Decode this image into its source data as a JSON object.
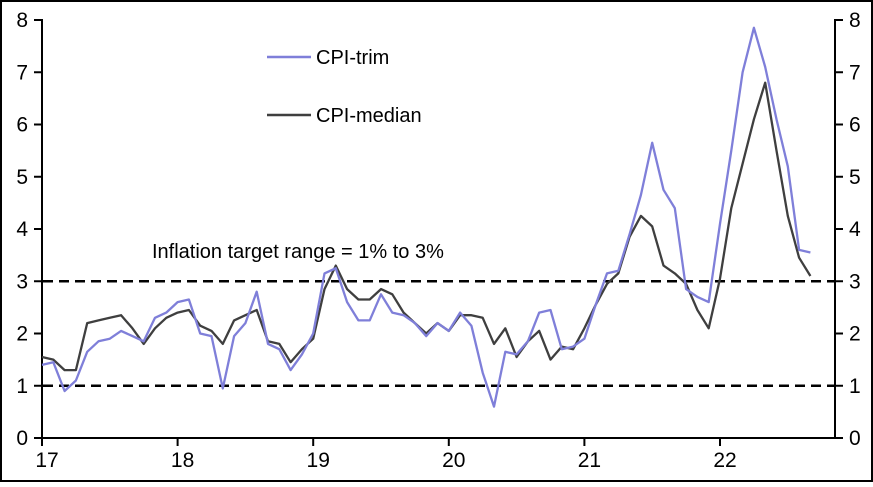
{
  "background": "#ffffff",
  "frame_color": "#000000",
  "chart_data": {
    "type": "line",
    "title": "",
    "x_start": "2017-01",
    "x_frequency": "monthly",
    "n_points": 69,
    "xtick_labels": [
      "17",
      "18",
      "19",
      "20",
      "21",
      "22"
    ],
    "ylim": [
      0,
      8
    ],
    "ytick_labels": [
      "0",
      "1",
      "2",
      "3",
      "4",
      "5",
      "6",
      "7",
      "8"
    ],
    "y_axis_sides": "both",
    "grid": false,
    "legend_position": "top-center",
    "annotation": {
      "text": "Inflation target range = 1% to 3%"
    },
    "target_range": {
      "low": 1,
      "high": 3,
      "style": "dashed",
      "color": "#000000"
    },
    "series": [
      {
        "name": "CPI-trim",
        "color": "#7f7fd9",
        "values": [
          1.4,
          1.45,
          0.9,
          1.1,
          1.65,
          1.85,
          1.9,
          2.05,
          1.95,
          1.85,
          2.3,
          2.4,
          2.6,
          2.65,
          2.0,
          1.95,
          0.95,
          1.95,
          2.2,
          2.8,
          1.8,
          1.7,
          1.3,
          1.6,
          2.0,
          3.15,
          3.25,
          2.6,
          2.25,
          2.25,
          2.75,
          2.4,
          2.35,
          2.2,
          1.95,
          2.2,
          2.05,
          2.4,
          2.15,
          1.25,
          0.6,
          1.65,
          1.6,
          1.85,
          2.4,
          2.45,
          1.7,
          1.75,
          1.9,
          2.55,
          3.15,
          3.2,
          3.9,
          4.65,
          5.65,
          4.75,
          4.4,
          2.85,
          2.7,
          2.6,
          4.1,
          5.5,
          7.0,
          7.85,
          7.1,
          6.1,
          5.2,
          3.6,
          3.55
        ]
      },
      {
        "name": "CPI-median",
        "color": "#3f3f3f",
        "values": [
          1.55,
          1.5,
          1.3,
          1.3,
          2.2,
          2.25,
          2.3,
          2.35,
          2.1,
          1.8,
          2.1,
          2.3,
          2.4,
          2.45,
          2.15,
          2.05,
          1.8,
          2.25,
          2.35,
          2.45,
          1.85,
          1.8,
          1.45,
          1.7,
          1.9,
          2.85,
          3.3,
          2.85,
          2.65,
          2.65,
          2.85,
          2.75,
          2.4,
          2.2,
          2.0,
          2.2,
          2.05,
          2.35,
          2.35,
          2.3,
          1.8,
          2.1,
          1.55,
          1.85,
          2.05,
          1.5,
          1.75,
          1.7,
          2.1,
          2.55,
          2.95,
          3.15,
          3.85,
          4.25,
          4.05,
          3.3,
          3.15,
          2.95,
          2.45,
          2.1,
          3.05,
          4.4,
          5.25,
          6.1,
          6.8,
          5.5,
          4.25,
          3.45,
          3.1
        ]
      }
    ]
  }
}
